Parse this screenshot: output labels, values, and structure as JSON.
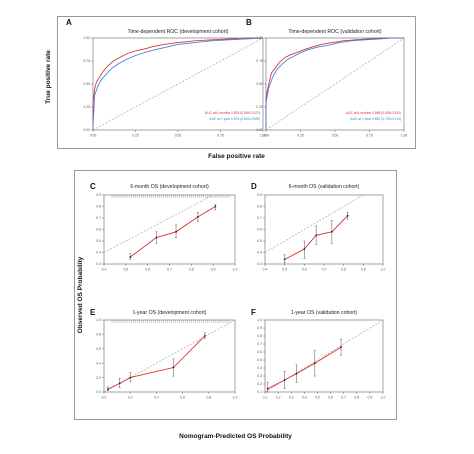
{
  "figure": {
    "top_ylabel": "True positive rate",
    "top_xlabel": "False positive rate",
    "bottom_ylabel": "Observed OS Probability",
    "bottom_xlabel": "Nomogram-Predicted OS Probability"
  },
  "colors": {
    "red": "#d93030",
    "blue": "#3a7fd5",
    "ref": "#a8a8a8",
    "axis": "#666666"
  },
  "chart_data": [
    {
      "id": "A",
      "type": "line",
      "title": "Time-dependent ROC (development cohort)",
      "xlim": [
        0,
        1
      ],
      "ylim": [
        0,
        1
      ],
      "xticks": [
        "0.00",
        "0.25",
        "0.50",
        "0.75",
        "1.00"
      ],
      "yticks": [
        "0.00",
        "0.25",
        "0.50",
        "0.75",
        "1.00"
      ],
      "reference_line": true,
      "series": [
        {
          "name": "AUC at 6 months 0.893 (0.859-0.927)",
          "color": "#d93030",
          "x": [
            0,
            0,
            0.01,
            0.02,
            0.04,
            0.06,
            0.09,
            0.12,
            0.16,
            0.2,
            0.25,
            0.3,
            0.36,
            0.42,
            0.5,
            0.6,
            0.7,
            0.8,
            0.9,
            1
          ],
          "y": [
            0,
            0.3,
            0.45,
            0.52,
            0.58,
            0.64,
            0.7,
            0.75,
            0.79,
            0.83,
            0.86,
            0.88,
            0.91,
            0.93,
            0.95,
            0.97,
            0.98,
            0.99,
            1,
            1
          ]
        },
        {
          "name": "AUC at 1 year 0.876 (0.843-0.909)",
          "color": "#3a7fd5",
          "x": [
            0,
            0,
            0.01,
            0.03,
            0.05,
            0.08,
            0.11,
            0.15,
            0.2,
            0.25,
            0.3,
            0.36,
            0.43,
            0.5,
            0.6,
            0.7,
            0.8,
            0.9,
            1
          ],
          "y": [
            0,
            0.05,
            0.38,
            0.48,
            0.55,
            0.61,
            0.67,
            0.72,
            0.77,
            0.81,
            0.84,
            0.87,
            0.9,
            0.93,
            0.95,
            0.97,
            0.98,
            0.99,
            1
          ]
        }
      ]
    },
    {
      "id": "B",
      "type": "line",
      "title": "Time-dependent ROC (validation cohort)",
      "xlim": [
        0,
        1
      ],
      "ylim": [
        0,
        1
      ],
      "xticks": [
        "0.00",
        "0.25",
        "0.50",
        "0.75",
        "1.00"
      ],
      "yticks": [
        "0.00",
        "0.25",
        "0.50",
        "0.75",
        "1.00"
      ],
      "reference_line": true,
      "series": [
        {
          "name": "AUC at 6 months 0.868 (0.806-0.930)",
          "color": "#d93030",
          "x": [
            0,
            0,
            0.02,
            0.04,
            0.07,
            0.1,
            0.14,
            0.18,
            0.22,
            0.27,
            0.33,
            0.4,
            0.48,
            0.56,
            0.65,
            0.75,
            0.85,
            0.95,
            1
          ],
          "y": [
            0,
            0.35,
            0.5,
            0.62,
            0.68,
            0.74,
            0.79,
            0.82,
            0.84,
            0.87,
            0.9,
            0.93,
            0.95,
            0.97,
            0.98,
            0.99,
            1,
            1,
            1
          ]
        },
        {
          "name": "AUC at 1 year 0.852 (0.790-0.914)",
          "color": "#3a7fd5",
          "x": [
            0,
            0,
            0.02,
            0.05,
            0.08,
            0.12,
            0.16,
            0.2,
            0.25,
            0.3,
            0.37,
            0.45,
            0.53,
            0.62,
            0.72,
            0.82,
            0.92,
            1
          ],
          "y": [
            0,
            0.3,
            0.46,
            0.58,
            0.66,
            0.72,
            0.77,
            0.8,
            0.84,
            0.87,
            0.9,
            0.92,
            0.95,
            0.97,
            0.98,
            0.99,
            1,
            1
          ]
        }
      ]
    },
    {
      "id": "C",
      "type": "line",
      "title": "6-month OS (development cohort)",
      "xlim": [
        0.4,
        1
      ],
      "ylim": [
        0.3,
        0.9
      ],
      "xticks": [
        "0.4",
        "0.5",
        "0.6",
        "0.7",
        "0.8",
        "0.9",
        "1.0"
      ],
      "yticks": [
        "0.3",
        "0.4",
        "0.5",
        "0.6",
        "0.7",
        "0.8",
        "0.9"
      ],
      "reference_line": true,
      "rug": true,
      "series": [
        {
          "name": "",
          "color": "#d93030",
          "x": [
            0.52,
            0.64,
            0.73,
            0.83,
            0.91
          ],
          "y": [
            0.36,
            0.53,
            0.58,
            0.71,
            0.8
          ],
          "err_low": [
            0.34,
            0.48,
            0.53,
            0.67,
            0.77
          ],
          "err_high": [
            0.39,
            0.58,
            0.64,
            0.75,
            0.82
          ]
        }
      ]
    },
    {
      "id": "D",
      "type": "line",
      "title": "6-month OS (validation cohort)",
      "xlim": [
        0.4,
        1
      ],
      "ylim": [
        0.3,
        0.9
      ],
      "xticks": [
        "0.4",
        "0.5",
        "0.6",
        "0.7",
        "0.8",
        "0.9",
        "1.0"
      ],
      "yticks": [
        "0.3",
        "0.4",
        "0.5",
        "0.6",
        "0.7",
        "0.8",
        "0.9"
      ],
      "reference_line": true,
      "series": [
        {
          "name": "",
          "color": "#d93030",
          "x": [
            0.5,
            0.6,
            0.66,
            0.74,
            0.82
          ],
          "y": [
            0.34,
            0.43,
            0.55,
            0.58,
            0.72
          ],
          "err_low": [
            0.31,
            0.35,
            0.47,
            0.48,
            0.69
          ],
          "err_high": [
            0.38,
            0.5,
            0.63,
            0.68,
            0.75
          ]
        }
      ]
    },
    {
      "id": "E",
      "type": "line",
      "title": "1-year OS (development cohort)",
      "xlim": [
        0,
        1
      ],
      "ylim": [
        0,
        1
      ],
      "xticks": [
        "0.0",
        "0.2",
        "0.4",
        "0.6",
        "0.8",
        "1.0"
      ],
      "yticks": [
        "0.0",
        "0.2",
        "0.4",
        "0.6",
        "0.8",
        "1.0"
      ],
      "reference_line": true,
      "rug": true,
      "series": [
        {
          "name": "",
          "color": "#d93030",
          "x": [
            0.03,
            0.12,
            0.2,
            0.53,
            0.77
          ],
          "y": [
            0.04,
            0.12,
            0.2,
            0.34,
            0.78
          ],
          "err_low": [
            0.02,
            0.06,
            0.14,
            0.22,
            0.74
          ],
          "err_high": [
            0.07,
            0.19,
            0.27,
            0.46,
            0.82
          ]
        }
      ]
    },
    {
      "id": "F",
      "type": "line",
      "title": "1-year OS (validation cohort)",
      "xlim": [
        0.1,
        1
      ],
      "ylim": [
        0.1,
        1
      ],
      "xticks": [
        "0.1",
        "0.2",
        "0.3",
        "0.4",
        "0.5",
        "0.6",
        "0.7",
        "0.8",
        "0.9",
        "1.0"
      ],
      "yticks": [
        "0.1",
        "0.2",
        "0.3",
        "0.4",
        "0.5",
        "0.6",
        "0.7",
        "0.8",
        "0.9",
        "1.0"
      ],
      "reference_line": true,
      "series": [
        {
          "name": "",
          "color": "#d93030",
          "x": [
            0.12,
            0.25,
            0.34,
            0.48,
            0.68
          ],
          "y": [
            0.14,
            0.25,
            0.33,
            0.46,
            0.66
          ],
          "err_low": [
            0.1,
            0.14,
            0.22,
            0.3,
            0.56
          ],
          "err_high": [
            0.22,
            0.36,
            0.44,
            0.62,
            0.76
          ]
        }
      ]
    }
  ]
}
